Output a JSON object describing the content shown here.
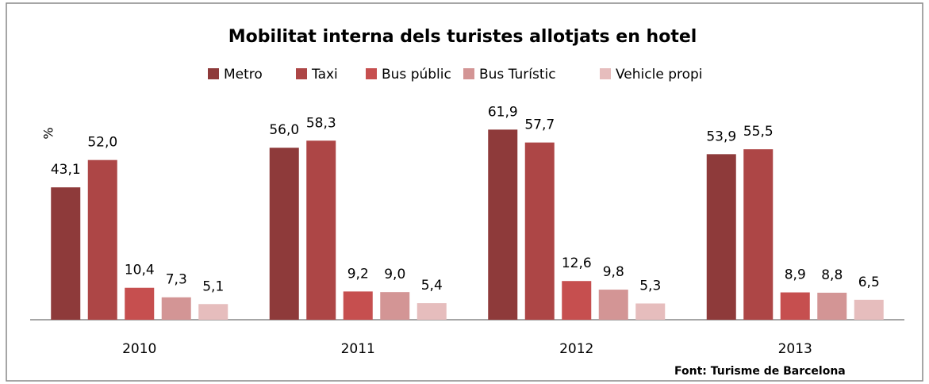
{
  "chart_data": {
    "type": "bar",
    "title": "Mobilitat interna dels turistes allotjats en hotel",
    "y_label": "%",
    "source": "Font: Turisme de Barcelona",
    "categories": [
      "2010",
      "2011",
      "2012",
      "2013"
    ],
    "ylim": [
      0,
      70
    ],
    "series": [
      {
        "name": "Metro",
        "color": "#8e3a3a",
        "values": [
          43.1,
          56.0,
          61.9,
          53.9
        ],
        "value_labels": [
          "43,1",
          "56,0",
          "61,9",
          "53,9"
        ]
      },
      {
        "name": "Taxi",
        "color": "#ad4646",
        "values": [
          52.0,
          58.3,
          57.7,
          55.5
        ],
        "value_labels": [
          "52,0",
          "58,3",
          "57,7",
          "55,5"
        ]
      },
      {
        "name": "Bus públic",
        "color": "#c64f4f",
        "values": [
          10.4,
          9.2,
          12.6,
          8.9
        ],
        "value_labels": [
          "10,4",
          "9,2",
          "12,6",
          "8,9"
        ]
      },
      {
        "name": "Bus Turístic",
        "color": "#d39595",
        "values": [
          7.3,
          9.0,
          9.8,
          8.8
        ],
        "value_labels": [
          "7,3",
          "9,0",
          "9,8",
          "8,8"
        ]
      },
      {
        "name": "Vehicle propi",
        "color": "#e6bdbd",
        "values": [
          5.1,
          5.4,
          5.3,
          6.5
        ],
        "value_labels": [
          "5,1",
          "5,4",
          "5,3",
          "6,5"
        ]
      }
    ]
  }
}
